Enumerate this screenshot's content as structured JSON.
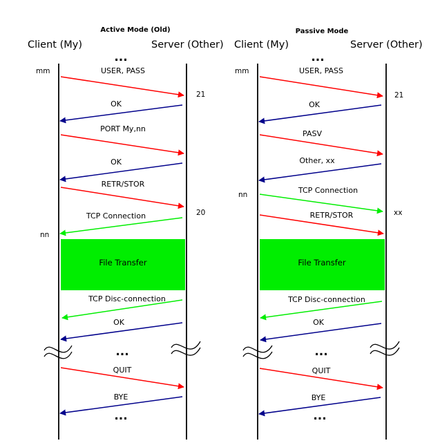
{
  "colors": {
    "red": "#ff0000",
    "blue": "#00008b",
    "green": "#00ee00",
    "transfer_box": "#00ee00",
    "lifeline": "#000000"
  },
  "active": {
    "title": "Active Mode (Old)",
    "client_label": "Client (My)",
    "server_label": "Server (Other)",
    "ellipsis": "...",
    "client_port_mm": "mm",
    "client_port_nn": "nn",
    "server_port_21": "21",
    "server_port_20": "20",
    "messages": [
      {
        "label": "USER, PASS",
        "dir": "to-server",
        "color": "red"
      },
      {
        "label": "OK",
        "dir": "to-client",
        "color": "blue"
      },
      {
        "label": "PORT My,nn",
        "dir": "to-server",
        "color": "red"
      },
      {
        "label": "OK",
        "dir": "to-client",
        "color": "blue"
      },
      {
        "label": "RETR/STOR",
        "dir": "to-server",
        "color": "red"
      },
      {
        "label": "TCP Connection",
        "dir": "to-client",
        "color": "green"
      },
      {
        "label": "TCP Disc-connection",
        "dir": "to-client",
        "color": "green"
      },
      {
        "label": "OK",
        "dir": "to-client",
        "color": "blue"
      },
      {
        "label": "QUIT",
        "dir": "to-server",
        "color": "red"
      },
      {
        "label": "BYE",
        "dir": "to-client",
        "color": "blue"
      }
    ],
    "transfer_label": "File Transfer"
  },
  "passive": {
    "title": "Passive Mode",
    "client_label": "Client (My)",
    "server_label": "Server (Other)",
    "ellipsis": "...",
    "client_port_mm": "mm",
    "client_port_nn": "nn",
    "server_port_21": "21",
    "server_port_xx": "xx",
    "messages": [
      {
        "label": "USER, PASS",
        "dir": "to-server",
        "color": "red"
      },
      {
        "label": "OK",
        "dir": "to-client",
        "color": "blue"
      },
      {
        "label": "PASV",
        "dir": "to-server",
        "color": "red"
      },
      {
        "label": "Other, xx",
        "dir": "to-client",
        "color": "blue"
      },
      {
        "label": "TCP Connection",
        "dir": "to-server",
        "color": "green"
      },
      {
        "label": "RETR/STOR",
        "dir": "to-server",
        "color": "red"
      },
      {
        "label": "TCP Disc-connection",
        "dir": "to-client",
        "color": "green"
      },
      {
        "label": "OK",
        "dir": "to-client",
        "color": "blue"
      },
      {
        "label": "QUIT",
        "dir": "to-server",
        "color": "red"
      },
      {
        "label": "BYE",
        "dir": "to-client",
        "color": "blue"
      }
    ],
    "transfer_label": "File Transfer"
  }
}
